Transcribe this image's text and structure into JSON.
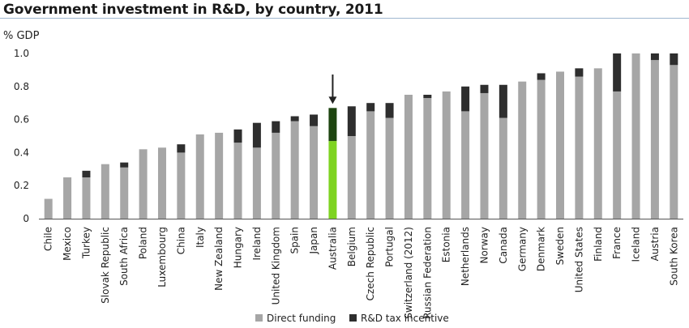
{
  "chart_data": {
    "type": "bar",
    "stacked": true,
    "title": "Government investment in R&D, by country, 2011",
    "ylabel": "% GDP",
    "xlabel": "",
    "ylim": [
      0,
      1.0
    ],
    "yticks": [
      "0",
      "0.2",
      "0.4",
      "0.6",
      "0.8",
      "1.0"
    ],
    "grid": false,
    "legend_position": "bottom-center",
    "highlight": "Australia",
    "highlight_marker": "down-arrow",
    "categories": [
      "Chile",
      "Mexico",
      "Turkey",
      "Slovak Republic",
      "South Africa",
      "Poland",
      "Luxembourg",
      "China",
      "Italy",
      "New Zealand",
      "Hungary",
      "Ireland",
      "United Kingdom",
      "Spain",
      "Japan",
      "Australia",
      "Belgium",
      "Czech Republic",
      "Portugal",
      "Switzerland (2012)",
      "Russian Federation",
      "Estonia",
      "Netherlands",
      "Norway",
      "Canada",
      "Germany",
      "Denmark",
      "Sweden",
      "United States",
      "Finland",
      "France",
      "Iceland",
      "Austria",
      "South Korea"
    ],
    "series": [
      {
        "name": "Direct funding",
        "color": "#a6a6a6",
        "highlight_color": "#7ed321",
        "values": [
          0.12,
          0.25,
          0.25,
          0.33,
          0.31,
          0.42,
          0.43,
          0.4,
          0.51,
          0.52,
          0.46,
          0.43,
          0.52,
          0.59,
          0.56,
          0.47,
          0.5,
          0.65,
          0.61,
          0.75,
          0.73,
          0.77,
          0.65,
          0.76,
          0.61,
          0.83,
          0.84,
          0.89,
          0.86,
          0.91,
          0.77,
          1.0,
          0.96,
          0.93
        ]
      },
      {
        "name": "R&D tax incentive",
        "color": "#2e2e2e",
        "highlight_color": "#1d4410",
        "values": [
          0.0,
          0.0,
          0.04,
          0.0,
          0.03,
          0.0,
          0.0,
          0.05,
          0.0,
          0.0,
          0.08,
          0.15,
          0.07,
          0.03,
          0.07,
          0.2,
          0.18,
          0.05,
          0.09,
          0.0,
          0.02,
          0.0,
          0.15,
          0.05,
          0.2,
          0.0,
          0.04,
          0.0,
          0.05,
          0.0,
          0.23,
          0.0,
          0.04,
          0.07
        ]
      }
    ]
  }
}
